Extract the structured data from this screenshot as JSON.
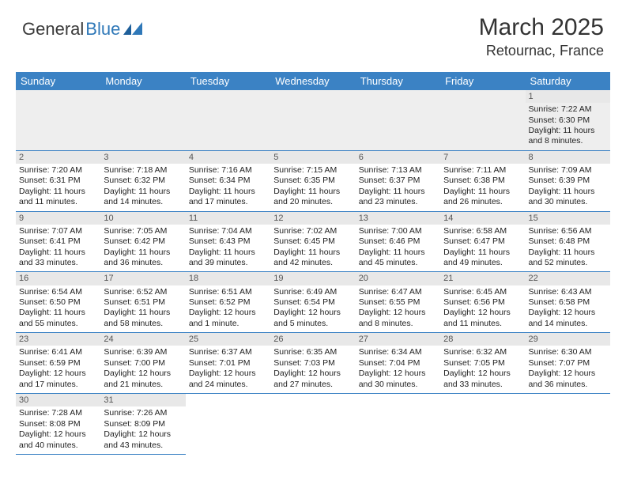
{
  "brand": {
    "part1": "General",
    "part2": "Blue"
  },
  "title": "March 2025",
  "location": "Retournac, France",
  "colors": {
    "header_bg": "#3b82c4",
    "header_text": "#ffffff",
    "daynum_bg": "#e8e8e8",
    "row_border": "#3b82c4",
    "brand_blue": "#2f78b8"
  },
  "weekdays": [
    "Sunday",
    "Monday",
    "Tuesday",
    "Wednesday",
    "Thursday",
    "Friday",
    "Saturday"
  ],
  "weeks": [
    [
      null,
      null,
      null,
      null,
      null,
      null,
      {
        "n": "1",
        "sunrise": "Sunrise: 7:22 AM",
        "sunset": "Sunset: 6:30 PM",
        "daylight1": "Daylight: 11 hours",
        "daylight2": "and 8 minutes."
      }
    ],
    [
      {
        "n": "2",
        "sunrise": "Sunrise: 7:20 AM",
        "sunset": "Sunset: 6:31 PM",
        "daylight1": "Daylight: 11 hours",
        "daylight2": "and 11 minutes."
      },
      {
        "n": "3",
        "sunrise": "Sunrise: 7:18 AM",
        "sunset": "Sunset: 6:32 PM",
        "daylight1": "Daylight: 11 hours",
        "daylight2": "and 14 minutes."
      },
      {
        "n": "4",
        "sunrise": "Sunrise: 7:16 AM",
        "sunset": "Sunset: 6:34 PM",
        "daylight1": "Daylight: 11 hours",
        "daylight2": "and 17 minutes."
      },
      {
        "n": "5",
        "sunrise": "Sunrise: 7:15 AM",
        "sunset": "Sunset: 6:35 PM",
        "daylight1": "Daylight: 11 hours",
        "daylight2": "and 20 minutes."
      },
      {
        "n": "6",
        "sunrise": "Sunrise: 7:13 AM",
        "sunset": "Sunset: 6:37 PM",
        "daylight1": "Daylight: 11 hours",
        "daylight2": "and 23 minutes."
      },
      {
        "n": "7",
        "sunrise": "Sunrise: 7:11 AM",
        "sunset": "Sunset: 6:38 PM",
        "daylight1": "Daylight: 11 hours",
        "daylight2": "and 26 minutes."
      },
      {
        "n": "8",
        "sunrise": "Sunrise: 7:09 AM",
        "sunset": "Sunset: 6:39 PM",
        "daylight1": "Daylight: 11 hours",
        "daylight2": "and 30 minutes."
      }
    ],
    [
      {
        "n": "9",
        "sunrise": "Sunrise: 7:07 AM",
        "sunset": "Sunset: 6:41 PM",
        "daylight1": "Daylight: 11 hours",
        "daylight2": "and 33 minutes."
      },
      {
        "n": "10",
        "sunrise": "Sunrise: 7:05 AM",
        "sunset": "Sunset: 6:42 PM",
        "daylight1": "Daylight: 11 hours",
        "daylight2": "and 36 minutes."
      },
      {
        "n": "11",
        "sunrise": "Sunrise: 7:04 AM",
        "sunset": "Sunset: 6:43 PM",
        "daylight1": "Daylight: 11 hours",
        "daylight2": "and 39 minutes."
      },
      {
        "n": "12",
        "sunrise": "Sunrise: 7:02 AM",
        "sunset": "Sunset: 6:45 PM",
        "daylight1": "Daylight: 11 hours",
        "daylight2": "and 42 minutes."
      },
      {
        "n": "13",
        "sunrise": "Sunrise: 7:00 AM",
        "sunset": "Sunset: 6:46 PM",
        "daylight1": "Daylight: 11 hours",
        "daylight2": "and 45 minutes."
      },
      {
        "n": "14",
        "sunrise": "Sunrise: 6:58 AM",
        "sunset": "Sunset: 6:47 PM",
        "daylight1": "Daylight: 11 hours",
        "daylight2": "and 49 minutes."
      },
      {
        "n": "15",
        "sunrise": "Sunrise: 6:56 AM",
        "sunset": "Sunset: 6:48 PM",
        "daylight1": "Daylight: 11 hours",
        "daylight2": "and 52 minutes."
      }
    ],
    [
      {
        "n": "16",
        "sunrise": "Sunrise: 6:54 AM",
        "sunset": "Sunset: 6:50 PM",
        "daylight1": "Daylight: 11 hours",
        "daylight2": "and 55 minutes."
      },
      {
        "n": "17",
        "sunrise": "Sunrise: 6:52 AM",
        "sunset": "Sunset: 6:51 PM",
        "daylight1": "Daylight: 11 hours",
        "daylight2": "and 58 minutes."
      },
      {
        "n": "18",
        "sunrise": "Sunrise: 6:51 AM",
        "sunset": "Sunset: 6:52 PM",
        "daylight1": "Daylight: 12 hours",
        "daylight2": "and 1 minute."
      },
      {
        "n": "19",
        "sunrise": "Sunrise: 6:49 AM",
        "sunset": "Sunset: 6:54 PM",
        "daylight1": "Daylight: 12 hours",
        "daylight2": "and 5 minutes."
      },
      {
        "n": "20",
        "sunrise": "Sunrise: 6:47 AM",
        "sunset": "Sunset: 6:55 PM",
        "daylight1": "Daylight: 12 hours",
        "daylight2": "and 8 minutes."
      },
      {
        "n": "21",
        "sunrise": "Sunrise: 6:45 AM",
        "sunset": "Sunset: 6:56 PM",
        "daylight1": "Daylight: 12 hours",
        "daylight2": "and 11 minutes."
      },
      {
        "n": "22",
        "sunrise": "Sunrise: 6:43 AM",
        "sunset": "Sunset: 6:58 PM",
        "daylight1": "Daylight: 12 hours",
        "daylight2": "and 14 minutes."
      }
    ],
    [
      {
        "n": "23",
        "sunrise": "Sunrise: 6:41 AM",
        "sunset": "Sunset: 6:59 PM",
        "daylight1": "Daylight: 12 hours",
        "daylight2": "and 17 minutes."
      },
      {
        "n": "24",
        "sunrise": "Sunrise: 6:39 AM",
        "sunset": "Sunset: 7:00 PM",
        "daylight1": "Daylight: 12 hours",
        "daylight2": "and 21 minutes."
      },
      {
        "n": "25",
        "sunrise": "Sunrise: 6:37 AM",
        "sunset": "Sunset: 7:01 PM",
        "daylight1": "Daylight: 12 hours",
        "daylight2": "and 24 minutes."
      },
      {
        "n": "26",
        "sunrise": "Sunrise: 6:35 AM",
        "sunset": "Sunset: 7:03 PM",
        "daylight1": "Daylight: 12 hours",
        "daylight2": "and 27 minutes."
      },
      {
        "n": "27",
        "sunrise": "Sunrise: 6:34 AM",
        "sunset": "Sunset: 7:04 PM",
        "daylight1": "Daylight: 12 hours",
        "daylight2": "and 30 minutes."
      },
      {
        "n": "28",
        "sunrise": "Sunrise: 6:32 AM",
        "sunset": "Sunset: 7:05 PM",
        "daylight1": "Daylight: 12 hours",
        "daylight2": "and 33 minutes."
      },
      {
        "n": "29",
        "sunrise": "Sunrise: 6:30 AM",
        "sunset": "Sunset: 7:07 PM",
        "daylight1": "Daylight: 12 hours",
        "daylight2": "and 36 minutes."
      }
    ],
    [
      {
        "n": "30",
        "sunrise": "Sunrise: 7:28 AM",
        "sunset": "Sunset: 8:08 PM",
        "daylight1": "Daylight: 12 hours",
        "daylight2": "and 40 minutes."
      },
      {
        "n": "31",
        "sunrise": "Sunrise: 7:26 AM",
        "sunset": "Sunset: 8:09 PM",
        "daylight1": "Daylight: 12 hours",
        "daylight2": "and 43 minutes."
      },
      null,
      null,
      null,
      null,
      null
    ]
  ]
}
